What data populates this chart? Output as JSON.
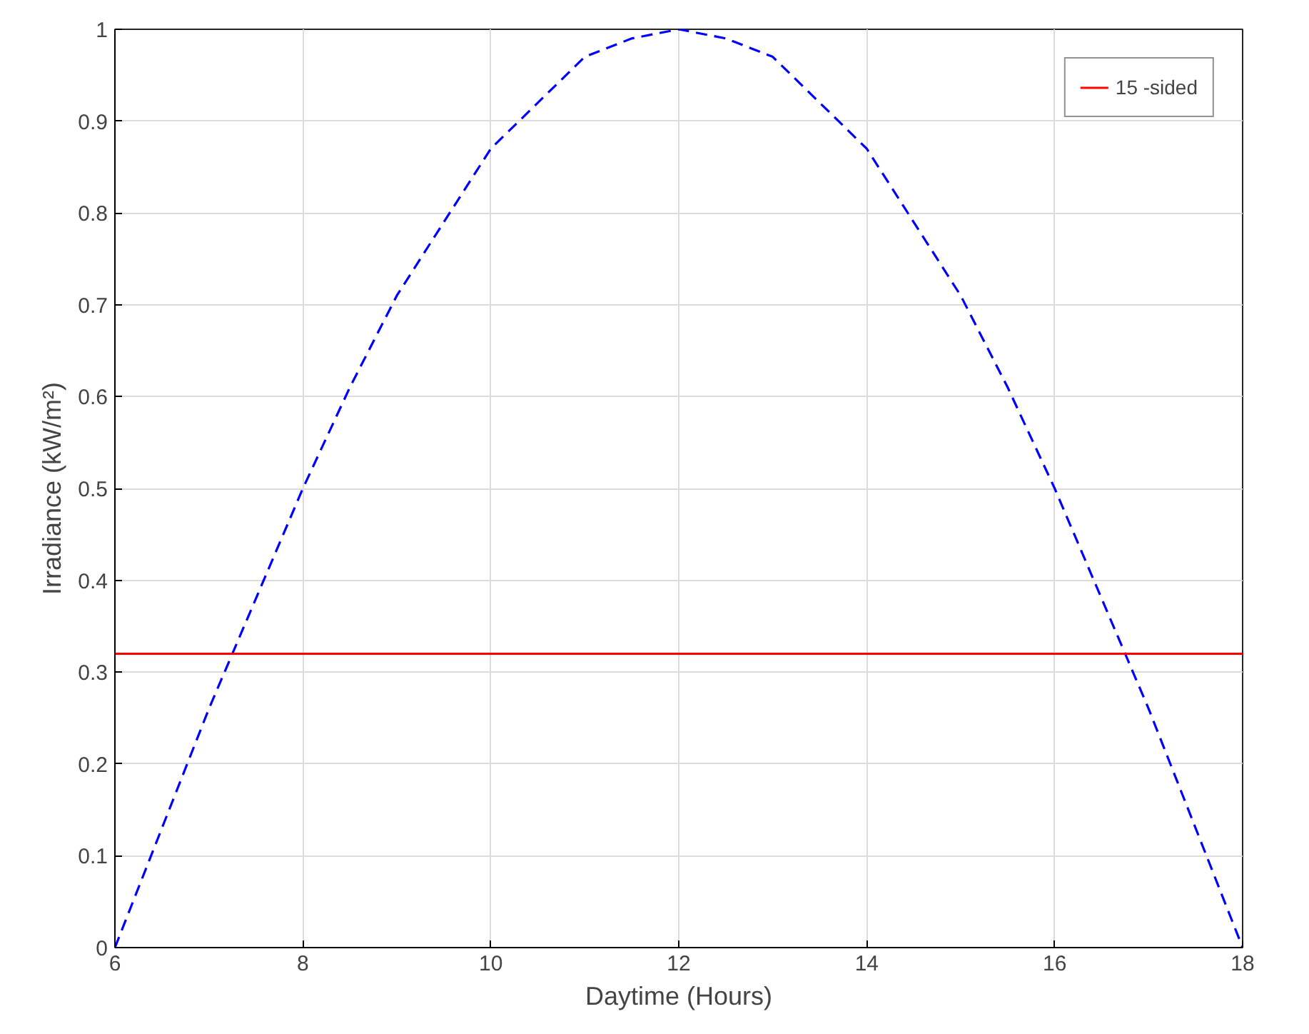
{
  "chart_data": {
    "type": "line",
    "xlabel": "Daytime (Hours)",
    "ylabel": "Irradiance (kW/m²)",
    "xlim": [
      6,
      18
    ],
    "ylim": [
      0,
      1
    ],
    "xticks": [
      6,
      8,
      10,
      12,
      14,
      16,
      18
    ],
    "yticks": [
      0,
      0.1,
      0.2,
      0.3,
      0.4,
      0.5,
      0.6,
      0.7,
      0.8,
      0.9,
      1
    ],
    "grid": true,
    "legend": "top right",
    "series": [
      {
        "color": "#0000ff",
        "line_style": "dashed",
        "x": [
          6,
          6.5,
          7,
          7.5,
          8,
          8.5,
          9,
          9.5,
          10,
          10.5,
          11,
          11.5,
          12,
          12.5,
          13,
          13.5,
          14,
          14.5,
          15,
          15.5,
          16,
          16.5,
          17,
          17.5,
          18
        ],
        "values": [
          0,
          0.13,
          0.26,
          0.38,
          0.5,
          0.61,
          0.71,
          0.79,
          0.87,
          0.92,
          0.97,
          0.99,
          1,
          0.99,
          0.97,
          0.92,
          0.87,
          0.79,
          0.71,
          0.61,
          0.5,
          0.38,
          0.26,
          0.13,
          0
        ]
      },
      {
        "name": "15 -sided",
        "color": "#ff0000",
        "line_style": "solid",
        "x": [
          6,
          8,
          10,
          12,
          14,
          16,
          18
        ],
        "values": [
          0.32,
          0.32,
          0.32,
          0.32,
          0.32,
          0.32,
          0.32
        ]
      }
    ]
  }
}
